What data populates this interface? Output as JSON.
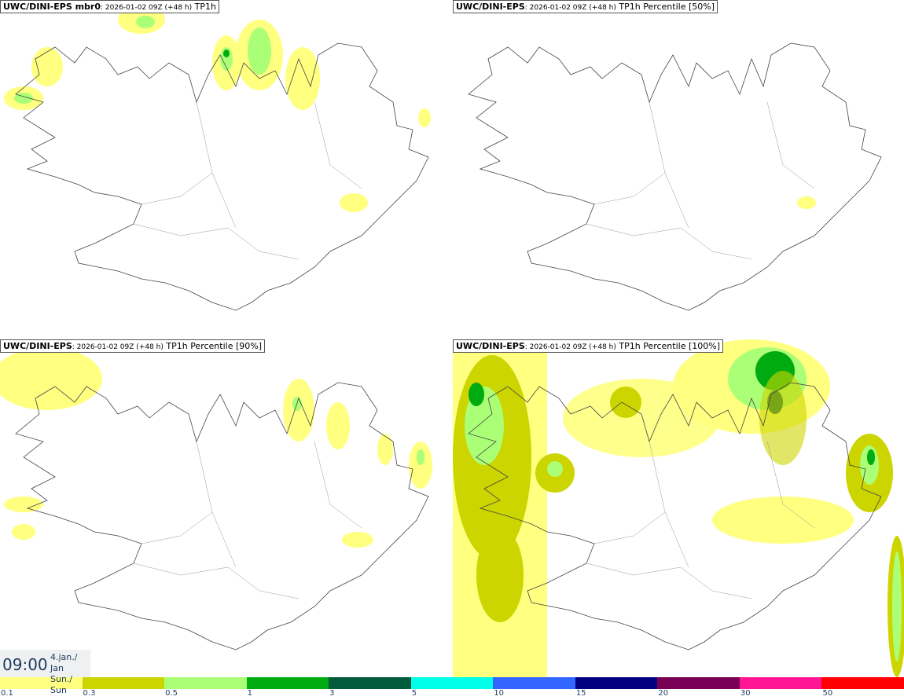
{
  "panels": [
    {
      "model": "UWC/DINI-EPS mbr0",
      "run": ": 2026-01-02 09Z (+48 h)",
      "field": " TP1h"
    },
    {
      "model": "UWC/DINI-EPS",
      "run": ": 2026-01-02 09Z (+48 h)",
      "field": " TP1h Percentile [50%]"
    },
    {
      "model": "UWC/DINI-EPS",
      "run": ": 2026-01-02 09Z (+48 h)",
      "field": " TP1h Percentile [90%]"
    },
    {
      "model": "UWC/DINI-EPS",
      "run": ": 2026-01-02 09Z (+48 h)",
      "field": " TP1h Percentile [100%]"
    }
  ],
  "valid_time": {
    "time": "09:00",
    "date_line1": "4.jan./ Jan",
    "date_line2": "Sun./ Sun"
  },
  "colorbar": {
    "labels": [
      "0.1",
      "0.3",
      "0.5",
      "1",
      "3",
      "5",
      "10",
      "15",
      "20",
      "30",
      "50"
    ],
    "colors": [
      "#ffff80",
      "#cdd500",
      "#aaff77",
      "#00aa11",
      "#005c3c",
      "#00ffe8",
      "#3366ff",
      "#000080",
      "#770055",
      "#ff1493",
      "#ff0000"
    ]
  }
}
